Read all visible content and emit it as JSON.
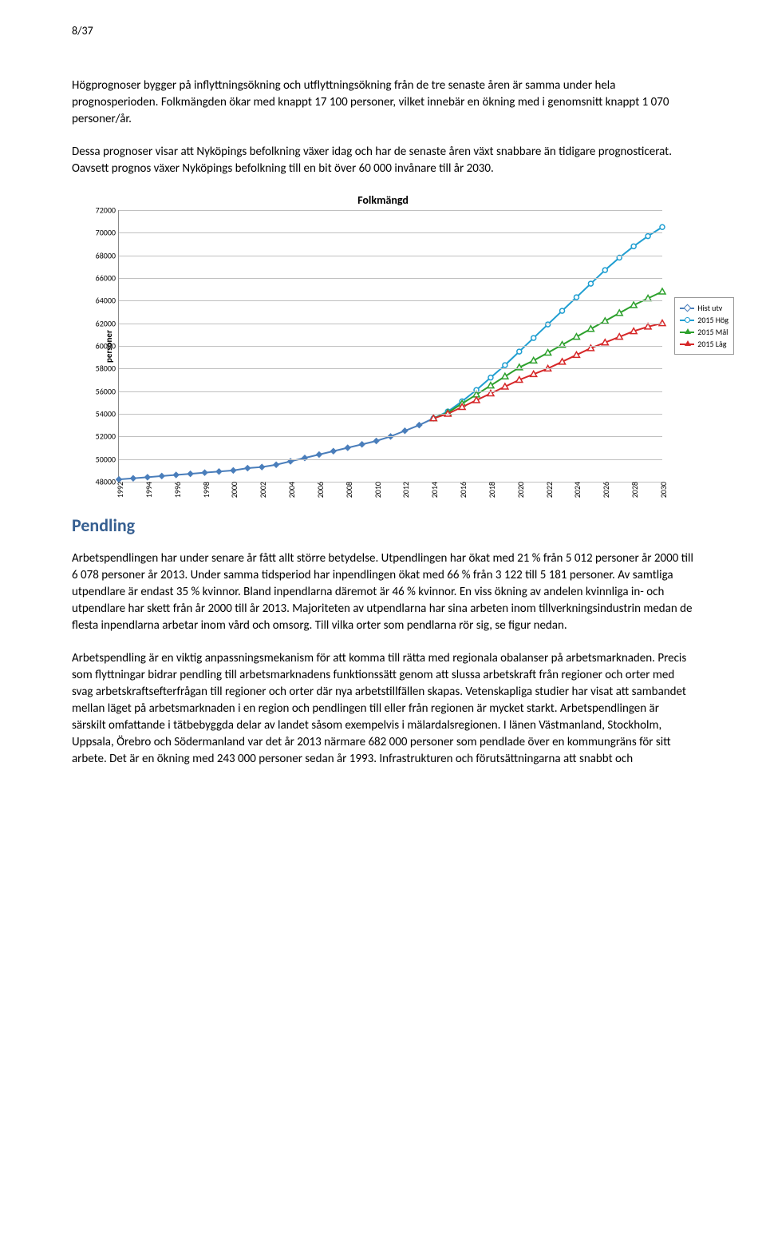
{
  "page_number": "8/37",
  "para1": "Högprognoser bygger på inflyttningsökning och utflyttningsökning från de tre senaste åren är samma under hela prognosperioden. Folkmängden ökar med knappt 17 100 personer, vilket innebär en ökning med i genomsnitt knappt 1 070 personer/år.",
  "para2": "Dessa prognoser visar att Nyköpings befolkning växer idag och har de senaste åren växt snabbare än tidigare prognosticerat. Oavsett prognos växer Nyköpings befolkning till en bit över 60 000 invånare till år 2030.",
  "chart": {
    "type": "line",
    "title": "Folkmängd",
    "ylabel": "personer",
    "ylim": [
      48000,
      72000
    ],
    "ytick_step": 2000,
    "xlim": [
      1992,
      2030
    ],
    "xtick_step": 2,
    "grid_color": "#c0c0c0",
    "background_color": "#ffffff",
    "title_fontsize": 14,
    "label_fontsize": 11,
    "tick_fontsize": 10,
    "series": [
      {
        "name": "Hist utv",
        "color": "#4a7ebb",
        "marker": "diamond",
        "data": [
          [
            1992,
            48200
          ],
          [
            1993,
            48300
          ],
          [
            1994,
            48400
          ],
          [
            1995,
            48500
          ],
          [
            1996,
            48600
          ],
          [
            1997,
            48700
          ],
          [
            1998,
            48800
          ],
          [
            1999,
            48900
          ],
          [
            2000,
            49000
          ],
          [
            2001,
            49200
          ],
          [
            2002,
            49300
          ],
          [
            2003,
            49500
          ],
          [
            2004,
            49800
          ],
          [
            2005,
            50100
          ],
          [
            2006,
            50400
          ],
          [
            2007,
            50700
          ],
          [
            2008,
            51000
          ],
          [
            2009,
            51300
          ],
          [
            2010,
            51600
          ],
          [
            2011,
            52000
          ],
          [
            2012,
            52500
          ],
          [
            2013,
            53000
          ],
          [
            2014,
            53600
          ]
        ]
      },
      {
        "name": "2015 Hög",
        "color": "#1f9ed1",
        "marker": "circle",
        "data": [
          [
            2014,
            53600
          ],
          [
            2015,
            54200
          ],
          [
            2016,
            55100
          ],
          [
            2017,
            56100
          ],
          [
            2018,
            57200
          ],
          [
            2019,
            58300
          ],
          [
            2020,
            59500
          ],
          [
            2021,
            60700
          ],
          [
            2022,
            61900
          ],
          [
            2023,
            63100
          ],
          [
            2024,
            64300
          ],
          [
            2025,
            65500
          ],
          [
            2026,
            66700
          ],
          [
            2027,
            67800
          ],
          [
            2028,
            68800
          ],
          [
            2029,
            69700
          ],
          [
            2030,
            70500
          ]
        ]
      },
      {
        "name": "2015 Mål",
        "color": "#2ca02c",
        "marker": "triangle",
        "data": [
          [
            2014,
            53600
          ],
          [
            2015,
            54100
          ],
          [
            2016,
            54900
          ],
          [
            2017,
            55700
          ],
          [
            2018,
            56500
          ],
          [
            2019,
            57300
          ],
          [
            2020,
            58100
          ],
          [
            2021,
            58700
          ],
          [
            2022,
            59400
          ],
          [
            2023,
            60100
          ],
          [
            2024,
            60800
          ],
          [
            2025,
            61500
          ],
          [
            2026,
            62200
          ],
          [
            2027,
            62900
          ],
          [
            2028,
            63600
          ],
          [
            2029,
            64200
          ],
          [
            2030,
            64800
          ]
        ]
      },
      {
        "name": "2015 Låg",
        "color": "#d62728",
        "marker": "triangle",
        "data": [
          [
            2014,
            53600
          ],
          [
            2015,
            54000
          ],
          [
            2016,
            54600
          ],
          [
            2017,
            55200
          ],
          [
            2018,
            55800
          ],
          [
            2019,
            56400
          ],
          [
            2020,
            57000
          ],
          [
            2021,
            57500
          ],
          [
            2022,
            58000
          ],
          [
            2023,
            58600
          ],
          [
            2024,
            59200
          ],
          [
            2025,
            59800
          ],
          [
            2026,
            60300
          ],
          [
            2027,
            60800
          ],
          [
            2028,
            61300
          ],
          [
            2029,
            61700
          ],
          [
            2030,
            62000
          ]
        ]
      }
    ]
  },
  "heading_pendling": "Pendling",
  "para3": "Arbetspendlingen har under senare år fått allt större betydelse. Utpendlingen har ökat med 21 % från 5 012 personer år 2000 till 6 078 personer år 2013. Under samma tidsperiod har inpendlingen ökat med 66 % från 3 122 till 5 181 personer. Av samtliga utpendlare är endast 35 % kvinnor. Bland inpendlarna däremot är 46 % kvinnor. En viss ökning av andelen kvinnliga in- och utpendlare har skett från år 2000 till år 2013. Majoriteten av utpendlarna har sina arbeten inom tillverkningsindustrin medan de flesta inpendlarna arbetar inom vård och omsorg. Till vilka orter som pendlarna rör sig, se figur nedan.",
  "para4": "Arbetspendling är en viktig anpassningsmekanism för att komma till rätta med regionala obalanser på arbetsmarknaden. Precis som flyttningar bidrar pendling till arbetsmarknadens funktionssätt genom att slussa arbetskraft från regioner och orter med svag arbetskraftsefterfrågan till regioner och orter där nya arbetstillfällen skapas. Vetenskapliga studier har visat att sambandet mellan läget på arbetsmarknaden i en region och pendlingen till eller från regionen är mycket starkt. Arbetspendlingen är särskilt omfattande i tätbebyggda delar av landet såsom exempelvis i mälardalsregionen. I länen Västmanland, Stockholm, Uppsala, Örebro och Södermanland var det år 2013 närmare 682 000 personer som pendlade över en kommungräns för sitt arbete. Det är en ökning med 243 000 personer sedan år 1993. Infrastrukturen och förutsättningarna att snabbt och"
}
